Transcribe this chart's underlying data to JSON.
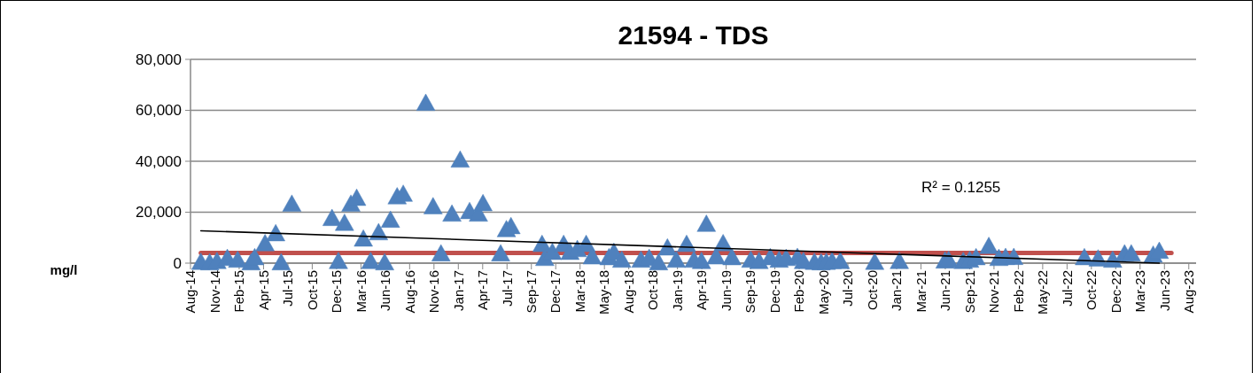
{
  "chart_data": {
    "type": "scatter",
    "title": "21594 - TDS",
    "ylabel": "mg/l",
    "marker": "triangle",
    "grid": "y",
    "annotations": [
      "R² = 0.1255"
    ],
    "xlim": [
      "2014-08-31",
      "2023-09-17"
    ],
    "xticks": [
      {
        "value": "2014-08-31",
        "label": "Aug-14"
      },
      {
        "value": "2014-11-19",
        "label": "Nov-14"
      },
      {
        "value": "2015-02-07",
        "label": "Feb-15"
      },
      {
        "value": "2015-04-28",
        "label": "Apr-15"
      },
      {
        "value": "2015-07-17",
        "label": "Jul-15"
      },
      {
        "value": "2015-10-05",
        "label": "Oct-15"
      },
      {
        "value": "2015-12-24",
        "label": "Dec-15"
      },
      {
        "value": "2016-03-13",
        "label": "Mar-16"
      },
      {
        "value": "2016-06-01",
        "label": "Jun-16"
      },
      {
        "value": "2016-08-20",
        "label": "Aug-16"
      },
      {
        "value": "2016-11-08",
        "label": "Nov-16"
      },
      {
        "value": "2017-01-27",
        "label": "Jan-17"
      },
      {
        "value": "2017-04-17",
        "label": "Apr-17"
      },
      {
        "value": "2017-07-06",
        "label": "Jul-17"
      },
      {
        "value": "2017-09-24",
        "label": "Sep-17"
      },
      {
        "value": "2017-12-13",
        "label": "Dec-17"
      },
      {
        "value": "2018-03-03",
        "label": "Mar-18"
      },
      {
        "value": "2018-05-22",
        "label": "May-18"
      },
      {
        "value": "2018-08-10",
        "label": "Aug-18"
      },
      {
        "value": "2018-10-29",
        "label": "Oct-18"
      },
      {
        "value": "2019-01-17",
        "label": "Jan-19"
      },
      {
        "value": "2019-04-07",
        "label": "Apr-19"
      },
      {
        "value": "2019-06-26",
        "label": "Jun-19"
      },
      {
        "value": "2019-09-14",
        "label": "Sep-19"
      },
      {
        "value": "2019-12-03",
        "label": "Dec-19"
      },
      {
        "value": "2020-02-21",
        "label": "Feb-20"
      },
      {
        "value": "2020-05-11",
        "label": "May-20"
      },
      {
        "value": "2020-07-30",
        "label": "Jul-20"
      },
      {
        "value": "2020-10-18",
        "label": "Oct-20"
      },
      {
        "value": "2021-01-06",
        "label": "Jan-21"
      },
      {
        "value": "2021-03-27",
        "label": "Mar-21"
      },
      {
        "value": "2021-06-15",
        "label": "Jun-21"
      },
      {
        "value": "2021-09-03",
        "label": "Sep-21"
      },
      {
        "value": "2021-11-22",
        "label": "Nov-21"
      },
      {
        "value": "2022-02-10",
        "label": "Feb-22"
      },
      {
        "value": "2022-05-01",
        "label": "May-22"
      },
      {
        "value": "2022-07-20",
        "label": "Jul-22"
      },
      {
        "value": "2022-10-08",
        "label": "Oct-22"
      },
      {
        "value": "2022-12-27",
        "label": "Dec-22"
      },
      {
        "value": "2023-03-17",
        "label": "Mar-23"
      },
      {
        "value": "2023-06-05",
        "label": "Jun-23"
      },
      {
        "value": "2023-08-24",
        "label": "Aug-23"
      }
    ],
    "ylim": [
      0,
      80000
    ],
    "yticks": [
      0,
      {
        "value": 20000,
        "label": "20,000"
      },
      {
        "value": 40000,
        "label": "40,000"
      },
      {
        "value": 60000,
        "label": "60,000"
      },
      {
        "value": 80000,
        "label": "80,000"
      }
    ],
    "series": [
      {
        "type": "line",
        "marker": "none",
        "color": "#c0504d",
        "x": [
          "2014-10-04",
          "2023-06-28"
        ],
        "values": [
          4000,
          4000
        ]
      },
      {
        "color": "#4f81bd",
        "x": [
          "2014-10-04",
          "2014-11-02",
          "2014-11-26",
          "2014-12-30",
          "2015-02-02",
          "2015-03-18",
          "2015-03-30",
          "2015-05-03",
          "2015-06-07",
          "2015-06-25",
          "2015-07-30",
          "2015-12-09",
          "2015-12-30",
          "2016-01-19",
          "2016-02-09",
          "2016-02-28",
          "2016-03-21",
          "2016-04-14",
          "2016-05-10",
          "2016-05-30",
          "2016-06-18",
          "2016-07-10",
          "2016-07-30",
          "2016-10-12",
          "2016-11-05",
          "2016-12-01",
          "2017-01-06",
          "2017-02-02",
          "2017-03-05",
          "2017-04-03",
          "2017-04-18",
          "2017-06-15",
          "2017-07-04",
          "2017-07-19",
          "2017-10-29",
          "2017-11-07",
          "2017-12-02",
          "2018-01-08",
          "2018-01-29",
          "2018-02-22",
          "2018-03-23",
          "2018-04-12",
          "2018-06-06",
          "2018-06-22",
          "2018-07-18",
          "2018-09-19",
          "2018-10-16",
          "2018-11-16",
          "2018-12-15",
          "2019-01-13",
          "2019-02-16",
          "2019-03-12",
          "2019-04-06",
          "2019-04-22",
          "2019-05-24",
          "2019-06-16",
          "2019-07-15",
          "2019-09-15",
          "2019-10-12",
          "2019-11-18",
          "2019-12-17",
          "2020-01-09",
          "2020-02-15",
          "2020-03-06",
          "2020-04-11",
          "2020-05-03",
          "2020-05-20",
          "2020-06-08",
          "2020-07-05",
          "2020-10-26",
          "2021-01-15",
          "2021-06-14",
          "2021-06-26",
          "2021-08-13",
          "2021-09-03",
          "2021-09-24",
          "2021-11-05",
          "2021-12-08",
          "2021-12-30",
          "2022-01-26",
          "2022-09-15",
          "2022-10-30",
          "2022-12-17",
          "2023-01-25",
          "2023-02-16",
          "2023-04-29",
          "2023-05-19"
        ],
        "values": [
          200,
          0,
          500,
          1700,
          1000,
          0,
          2000,
          7500,
          11400,
          0,
          23000,
          17400,
          500,
          15500,
          23000,
          25300,
          9300,
          500,
          11800,
          0,
          16700,
          25900,
          26900,
          62600,
          22000,
          3500,
          19100,
          40300,
          20100,
          19100,
          23200,
          3500,
          13000,
          14200,
          7200,
          1700,
          4100,
          7200,
          4100,
          5200,
          7200,
          2300,
          2000,
          4100,
          1000,
          1000,
          1700,
          0,
          5800,
          1000,
          7200,
          1000,
          500,
          15100,
          2300,
          7500,
          2000,
          1000,
          500,
          2000,
          1000,
          1700,
          2100,
          500,
          200,
          0,
          200,
          500,
          500,
          200,
          500,
          700,
          1000,
          500,
          1000,
          2000,
          6400,
          1700,
          2100,
          2100,
          2000,
          1500,
          1000,
          3500,
          3500,
          3000,
          4500
        ]
      },
      {
        "type": "line",
        "marker": "none",
        "color": "#000000",
        "x": [
          "2014-10-04",
          "2023-05-19"
        ],
        "values": [
          12700,
          0
        ]
      }
    ]
  }
}
